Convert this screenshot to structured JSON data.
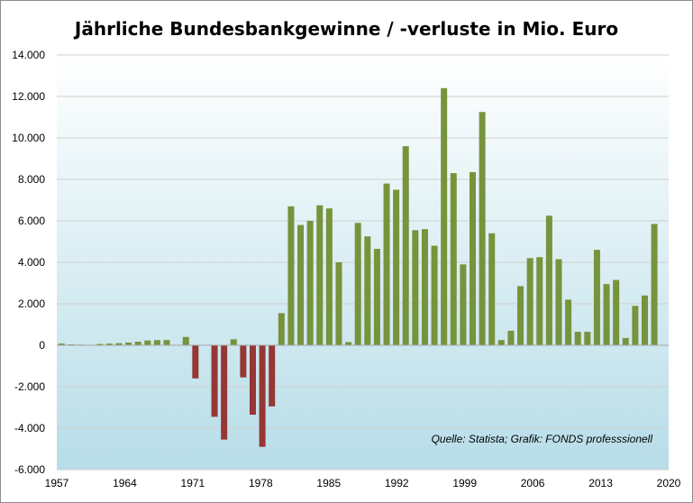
{
  "chart_data": {
    "type": "bar",
    "title": "Jährliche Bundesbankgewinne / -verluste in Mio. Euro",
    "xlabel": "",
    "ylabel": "",
    "ylim": [
      -6000,
      14000
    ],
    "yticks": [
      -6000,
      -4000,
      -2000,
      0,
      2000,
      4000,
      6000,
      8000,
      10000,
      12000,
      14000
    ],
    "ytick_labels": [
      "-6.000",
      "-4.000",
      "-2.000",
      "0",
      "2.000",
      "4.000",
      "6.000",
      "8.000",
      "10.000",
      "12.000",
      "14.000"
    ],
    "xtick_labels": [
      "1957",
      "1964",
      "1971",
      "1978",
      "1985",
      "1992",
      "1999",
      "2006",
      "2013",
      "2020"
    ],
    "grid": true,
    "positive_color": "#77933C",
    "negative_color": "#953735",
    "background_top": "#ffffff",
    "background_bottom": "#b7dde8",
    "annotation": "Quelle: Statista; Grafik: FONDS professsionell",
    "categories": [
      1957,
      1958,
      1959,
      1960,
      1961,
      1962,
      1963,
      1964,
      1965,
      1966,
      1967,
      1968,
      1969,
      1970,
      1971,
      1972,
      1973,
      1974,
      1975,
      1976,
      1977,
      1978,
      1979,
      1980,
      1981,
      1982,
      1983,
      1984,
      1985,
      1986,
      1987,
      1988,
      1989,
      1990,
      1991,
      1992,
      1993,
      1994,
      1995,
      1996,
      1997,
      1998,
      1999,
      2000,
      2001,
      2002,
      2003,
      2004,
      2005,
      2006,
      2007,
      2008,
      2009,
      2010,
      2011,
      2012,
      2013,
      2014,
      2015,
      2016,
      2017,
      2018,
      2019,
      2020
    ],
    "values": [
      80,
      40,
      30,
      20,
      60,
      80,
      100,
      130,
      170,
      230,
      250,
      250,
      0,
      400,
      -1600,
      0,
      -3450,
      -4550,
      290,
      -1550,
      -3350,
      -4900,
      -2950,
      1550,
      6700,
      5800,
      6000,
      6750,
      6600,
      4000,
      150,
      5900,
      5250,
      4650,
      7800,
      7500,
      9600,
      5550,
      5600,
      4800,
      12400,
      8300,
      3900,
      8350,
      11250,
      5400,
      250,
      700,
      2850,
      4200,
      4250,
      6250,
      4150,
      2200,
      650,
      650,
      4600,
      2950,
      3150,
      350,
      1900,
      2400,
      5850,
      0
    ]
  }
}
